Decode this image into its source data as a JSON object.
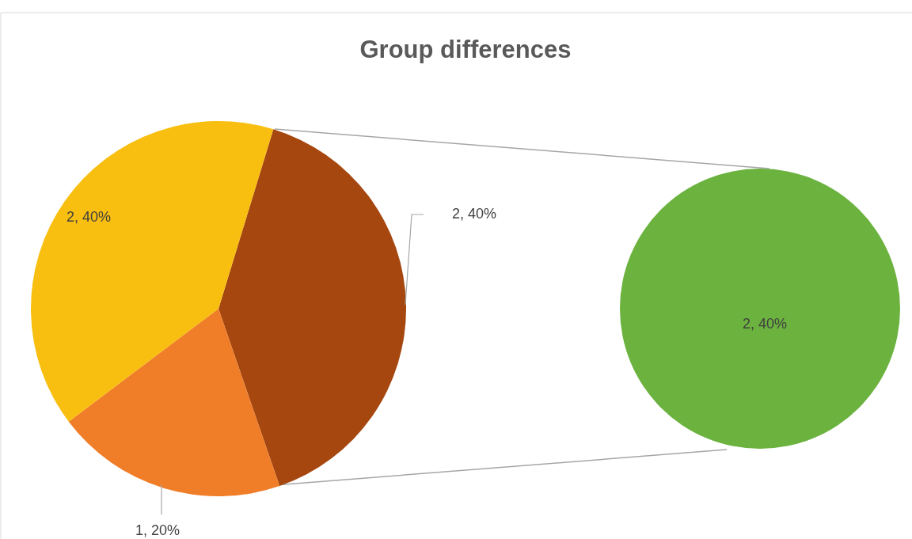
{
  "chart_data": [
    {
      "type": "pie",
      "title": "Group differences",
      "categories": [
        null,
        null,
        null
      ],
      "values": [
        2,
        1,
        2
      ],
      "colors": [
        "#a5470f",
        "#f07d28",
        "#f8bf10"
      ],
      "value_labels": [
        "2, 40%",
        "1, 20%",
        "2, 40%"
      ]
    },
    {
      "type": "pie",
      "categories": [
        null
      ],
      "values": [
        2
      ],
      "colors": [
        "#6cb23f"
      ],
      "value_labels": [
        "2, 40%"
      ]
    }
  ]
}
